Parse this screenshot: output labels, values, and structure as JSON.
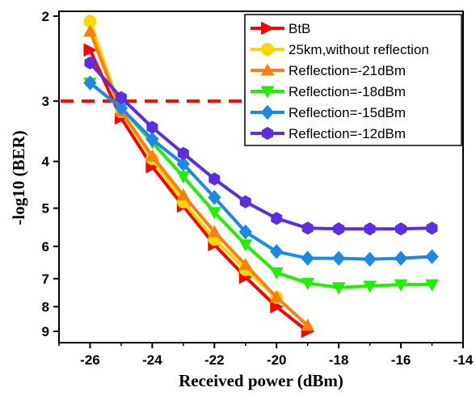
{
  "chart_data": {
    "type": "line",
    "xlabel": "Received power (dBm)",
    "ylabel": "-log10 (BER)",
    "xlim": [
      -27,
      -14
    ],
    "x_ticks": [
      -26,
      -24,
      -22,
      -20,
      -18,
      -16,
      -14
    ],
    "y_ticks": [
      2,
      3,
      4,
      5,
      6,
      7,
      8,
      9
    ],
    "y_scale": "-log(-log10(BER)) (inverted, Q-scale style)",
    "grid": false,
    "legend_position": "top-right",
    "threshold_line": {
      "y": 3,
      "color": "#ff0000",
      "style": "dashed",
      "x_range": [
        -27,
        -19
      ]
    },
    "series": [
      {
        "name": "BtB",
        "color": "#ff0000",
        "marker": "triangle-right",
        "x": [
          -26,
          -25,
          -24,
          -23,
          -22,
          -21,
          -20,
          -19
        ],
        "y": [
          2.35,
          3.25,
          4.1,
          4.95,
          5.95,
          6.95,
          8.0,
          9.0
        ]
      },
      {
        "name": "25km,without reflection",
        "color": "#ffd700",
        "marker": "circle",
        "x": [
          -26,
          -25,
          -24,
          -23,
          -22,
          -21,
          -20
        ],
        "y": [
          2.05,
          3.15,
          3.95,
          4.85,
          5.8,
          6.7,
          7.65
        ]
      },
      {
        "name": "Reflection=-21dBm",
        "color": "#ff7f0e",
        "marker": "triangle-up",
        "x": [
          -26,
          -25,
          -24,
          -23,
          -22,
          -21,
          -20,
          -19
        ],
        "y": [
          2.15,
          3.15,
          3.9,
          4.7,
          5.6,
          6.55,
          7.65,
          8.75
        ]
      },
      {
        "name": "Reflection=-18dBm",
        "color": "#22ee00",
        "marker": "triangle-down",
        "x": [
          -26,
          -25,
          -24,
          -23,
          -22,
          -21,
          -20,
          -19,
          -18,
          -17,
          -16,
          -15
        ],
        "y": [
          2.75,
          3.1,
          3.65,
          4.3,
          5.1,
          5.95,
          6.8,
          7.15,
          7.3,
          7.25,
          7.2,
          7.2
        ]
      },
      {
        "name": "Reflection=-15dBm",
        "color": "#1e88e5",
        "marker": "diamond",
        "x": [
          -26,
          -25,
          -24,
          -23,
          -22,
          -21,
          -20,
          -19,
          -18,
          -17,
          -16,
          -15
        ],
        "y": [
          2.75,
          3.1,
          3.6,
          4.05,
          4.75,
          5.6,
          6.15,
          6.35,
          6.35,
          6.38,
          6.35,
          6.3
        ]
      },
      {
        "name": "Reflection=-12dBm",
        "color": "#5b2ee0",
        "marker": "hexagon",
        "x": [
          -26,
          -25,
          -24,
          -23,
          -22,
          -21,
          -20,
          -19,
          -18,
          -17,
          -16,
          -15
        ],
        "y": [
          2.5,
          2.95,
          3.4,
          3.85,
          4.35,
          4.85,
          5.25,
          5.5,
          5.52,
          5.52,
          5.52,
          5.5
        ]
      }
    ]
  }
}
